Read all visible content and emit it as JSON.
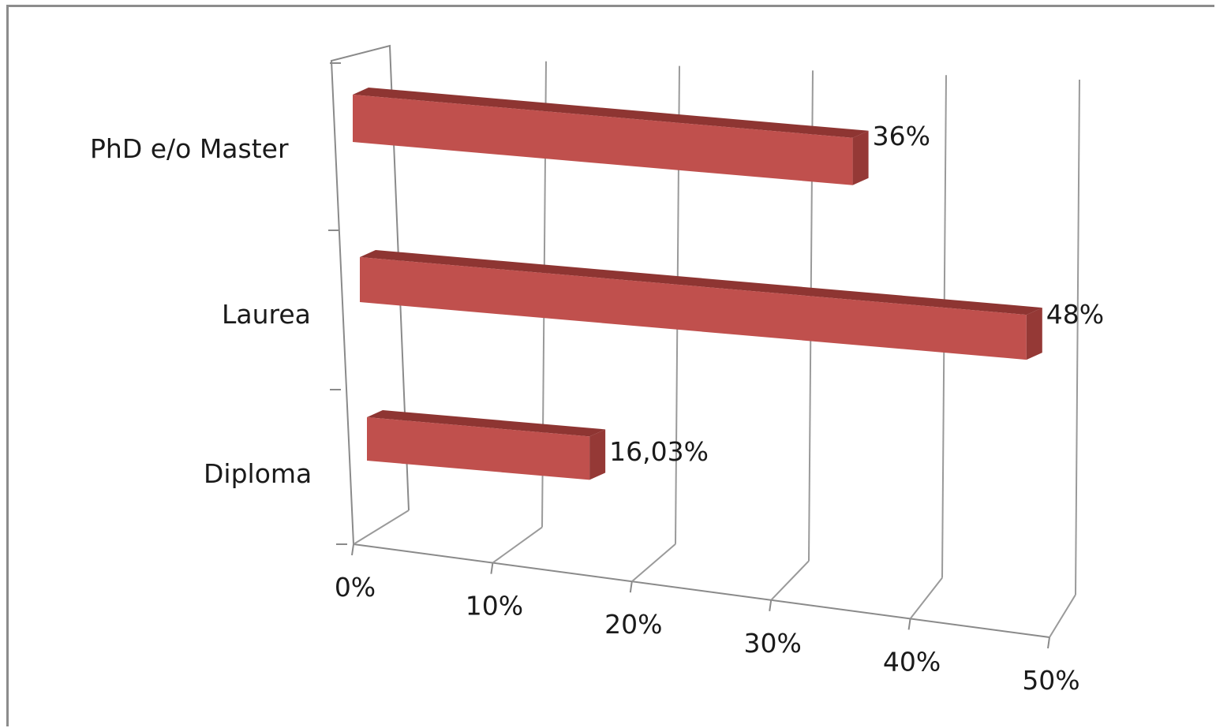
{
  "chart_data": {
    "type": "bar",
    "orientation": "horizontal",
    "style": "3d",
    "title": "",
    "xlabel": "",
    "ylabel": "",
    "categories": [
      "PhD e/o Master",
      "Laurea",
      "Diploma"
    ],
    "values": [
      36,
      48,
      16.03
    ],
    "data_labels": [
      "36%",
      "48%",
      "16,03%"
    ],
    "xlim": [
      0,
      50
    ],
    "x_ticks": [
      0,
      10,
      20,
      30,
      40,
      50
    ],
    "x_tick_labels": [
      "0%",
      "10%",
      "20%",
      "30%",
      "40%",
      "50%"
    ],
    "grid": true,
    "legend": "none",
    "bar_color": "#c0504d",
    "bar_top_color": "#8e3532",
    "bar_side_color": "#953936"
  }
}
